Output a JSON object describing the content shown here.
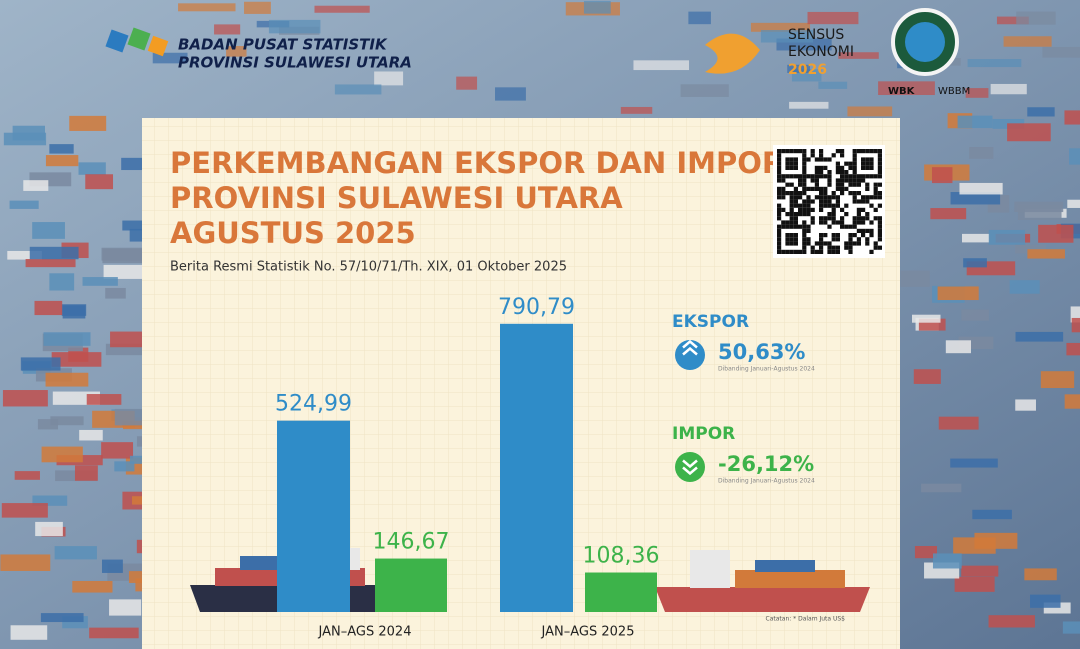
{
  "header": {
    "org_line1": "BADAN PUSAT STATISTIK",
    "org_line2": "PROVINSI SULAWESI UTARA",
    "census_line1": "SENSUS",
    "census_line2": "EKONOMI",
    "census_year": "2026",
    "badge_left": "WBK",
    "badge_right": "WBBM"
  },
  "chart_data": {
    "type": "bar",
    "title": [
      "PERKEMBANGAN EKSPOR DAN IMPOR",
      "PROVINSI SULAWESI UTARA",
      "AGUSTUS 2025"
    ],
    "subtitle": "Berita Resmi Statistik No. 57/10/71/Th. XIX, 01 Oktober 2025",
    "categories": [
      "JAN–AGS 2024",
      "JAN–AGS 2025"
    ],
    "series": [
      {
        "name": "EKSPOR",
        "color": "#2f8cc8",
        "values": [
          524.99,
          790.79
        ],
        "value_labels": [
          "524,99",
          "790,79"
        ]
      },
      {
        "name": "IMPOR",
        "color": "#3db34a",
        "values": [
          146.67,
          108.36
        ],
        "value_labels": [
          "146,67",
          "108,36"
        ]
      }
    ],
    "changes": [
      {
        "value": 50.63,
        "label": "50,63%",
        "note": "Dibanding Januari-Agustus 2024"
      },
      {
        "value": -26.12,
        "label": "-26,12%",
        "note": "Dibanding Januari-Agustus 2024"
      }
    ],
    "ylim": [
      0,
      900
    ],
    "footnote": "Catatan: * Dalam Juta US$"
  }
}
